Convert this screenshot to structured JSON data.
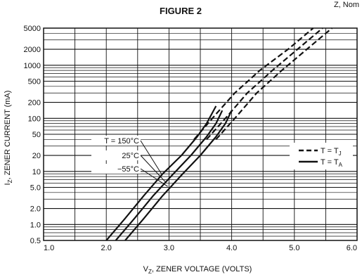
{
  "chart_data": {
    "type": "line",
    "title": "FIGURE 2",
    "corner_label": "Z, Nom",
    "xlabel": {
      "main": "V",
      "sub": "Z",
      "rest": ", ZENER VOLTAGE (VOLTS)"
    },
    "ylabel": {
      "main": "I",
      "sub": "Z",
      "rest": ", ZENER CURRENT (mA)"
    },
    "xlim": [
      1.0,
      6.0
    ],
    "ylim": [
      0.5,
      5000
    ],
    "yscale": "log",
    "x_ticks": [
      {
        "value": 1.0,
        "label": "1.0"
      },
      {
        "value": 2.0,
        "label": "2.0"
      },
      {
        "value": 3.0,
        "label": "3.0"
      },
      {
        "value": 4.0,
        "label": "4.0"
      },
      {
        "value": 5.0,
        "label": "5.0"
      },
      {
        "value": 6.0,
        "label": "6.0"
      }
    ],
    "y_ticks": [
      {
        "value": 0.5,
        "label": "0.5"
      },
      {
        "value": 1.0,
        "label": "1.0"
      },
      {
        "value": 2.0,
        "label": "2.0"
      },
      {
        "value": 5.0,
        "label": "5.0"
      },
      {
        "value": 10,
        "label": "10"
      },
      {
        "value": 20,
        "label": "20"
      },
      {
        "value": 50,
        "label": "50"
      },
      {
        "value": 100,
        "label": "100"
      },
      {
        "value": 200,
        "label": "200"
      },
      {
        "value": 500,
        "label": "500"
      },
      {
        "value": 1000,
        "label": "1000"
      },
      {
        "value": 2000,
        "label": "2000"
      },
      {
        "value": 5000,
        "label": "5000"
      }
    ],
    "grid": {
      "x_major": [
        1.5,
        2.0,
        2.5,
        3.0,
        3.5,
        4.0,
        4.5,
        5.0,
        5.5
      ],
      "y_log_minor": true
    },
    "legend": {
      "placement": "right",
      "entries": [
        {
          "style": "dashed",
          "text": "T = T",
          "sub": "J"
        },
        {
          "style": "solid",
          "text": "T = T",
          "sub": "A"
        }
      ]
    },
    "annotations": [
      {
        "text": "T = 150°C",
        "target": [
          2.88,
          9.0
        ]
      },
      {
        "text": "25°C",
        "target": [
          2.95,
          6.2
        ]
      },
      {
        "text": "−55°C",
        "target": [
          2.98,
          5.2
        ]
      }
    ],
    "series": [
      {
        "style": "solid",
        "x": [
          2.0,
          2.3,
          2.6,
          2.9,
          3.2,
          3.45,
          3.6,
          3.75
        ],
        "y": [
          0.5,
          1.3,
          3.5,
          9,
          20,
          45,
          80,
          170
        ]
      },
      {
        "style": "solid",
        "x": [
          2.15,
          2.45,
          2.75,
          3.05,
          3.35,
          3.6,
          3.75,
          3.85
        ],
        "y": [
          0.5,
          1.3,
          3.5,
          8.5,
          20,
          45,
          80,
          140
        ]
      },
      {
        "style": "solid",
        "x": [
          2.3,
          2.6,
          2.9,
          3.2,
          3.5,
          3.75,
          3.9,
          4.0
        ],
        "y": [
          0.5,
          1.3,
          3.5,
          8.5,
          20,
          45,
          80,
          140
        ]
      },
      {
        "style": "dashed",
        "x": [
          3.4,
          3.75,
          4.05,
          4.45,
          4.9,
          5.3
        ],
        "y": [
          40,
          120,
          300,
          800,
          2000,
          5000
        ]
      },
      {
        "style": "dashed",
        "x": [
          3.6,
          3.9,
          4.25,
          4.65,
          5.05,
          5.45
        ],
        "y": [
          40,
          100,
          300,
          800,
          2000,
          5000
        ]
      },
      {
        "style": "dashed",
        "x": [
          3.75,
          4.05,
          4.4,
          4.8,
          5.2,
          5.6
        ],
        "y": [
          40,
          100,
          300,
          800,
          2000,
          5000
        ]
      }
    ]
  }
}
